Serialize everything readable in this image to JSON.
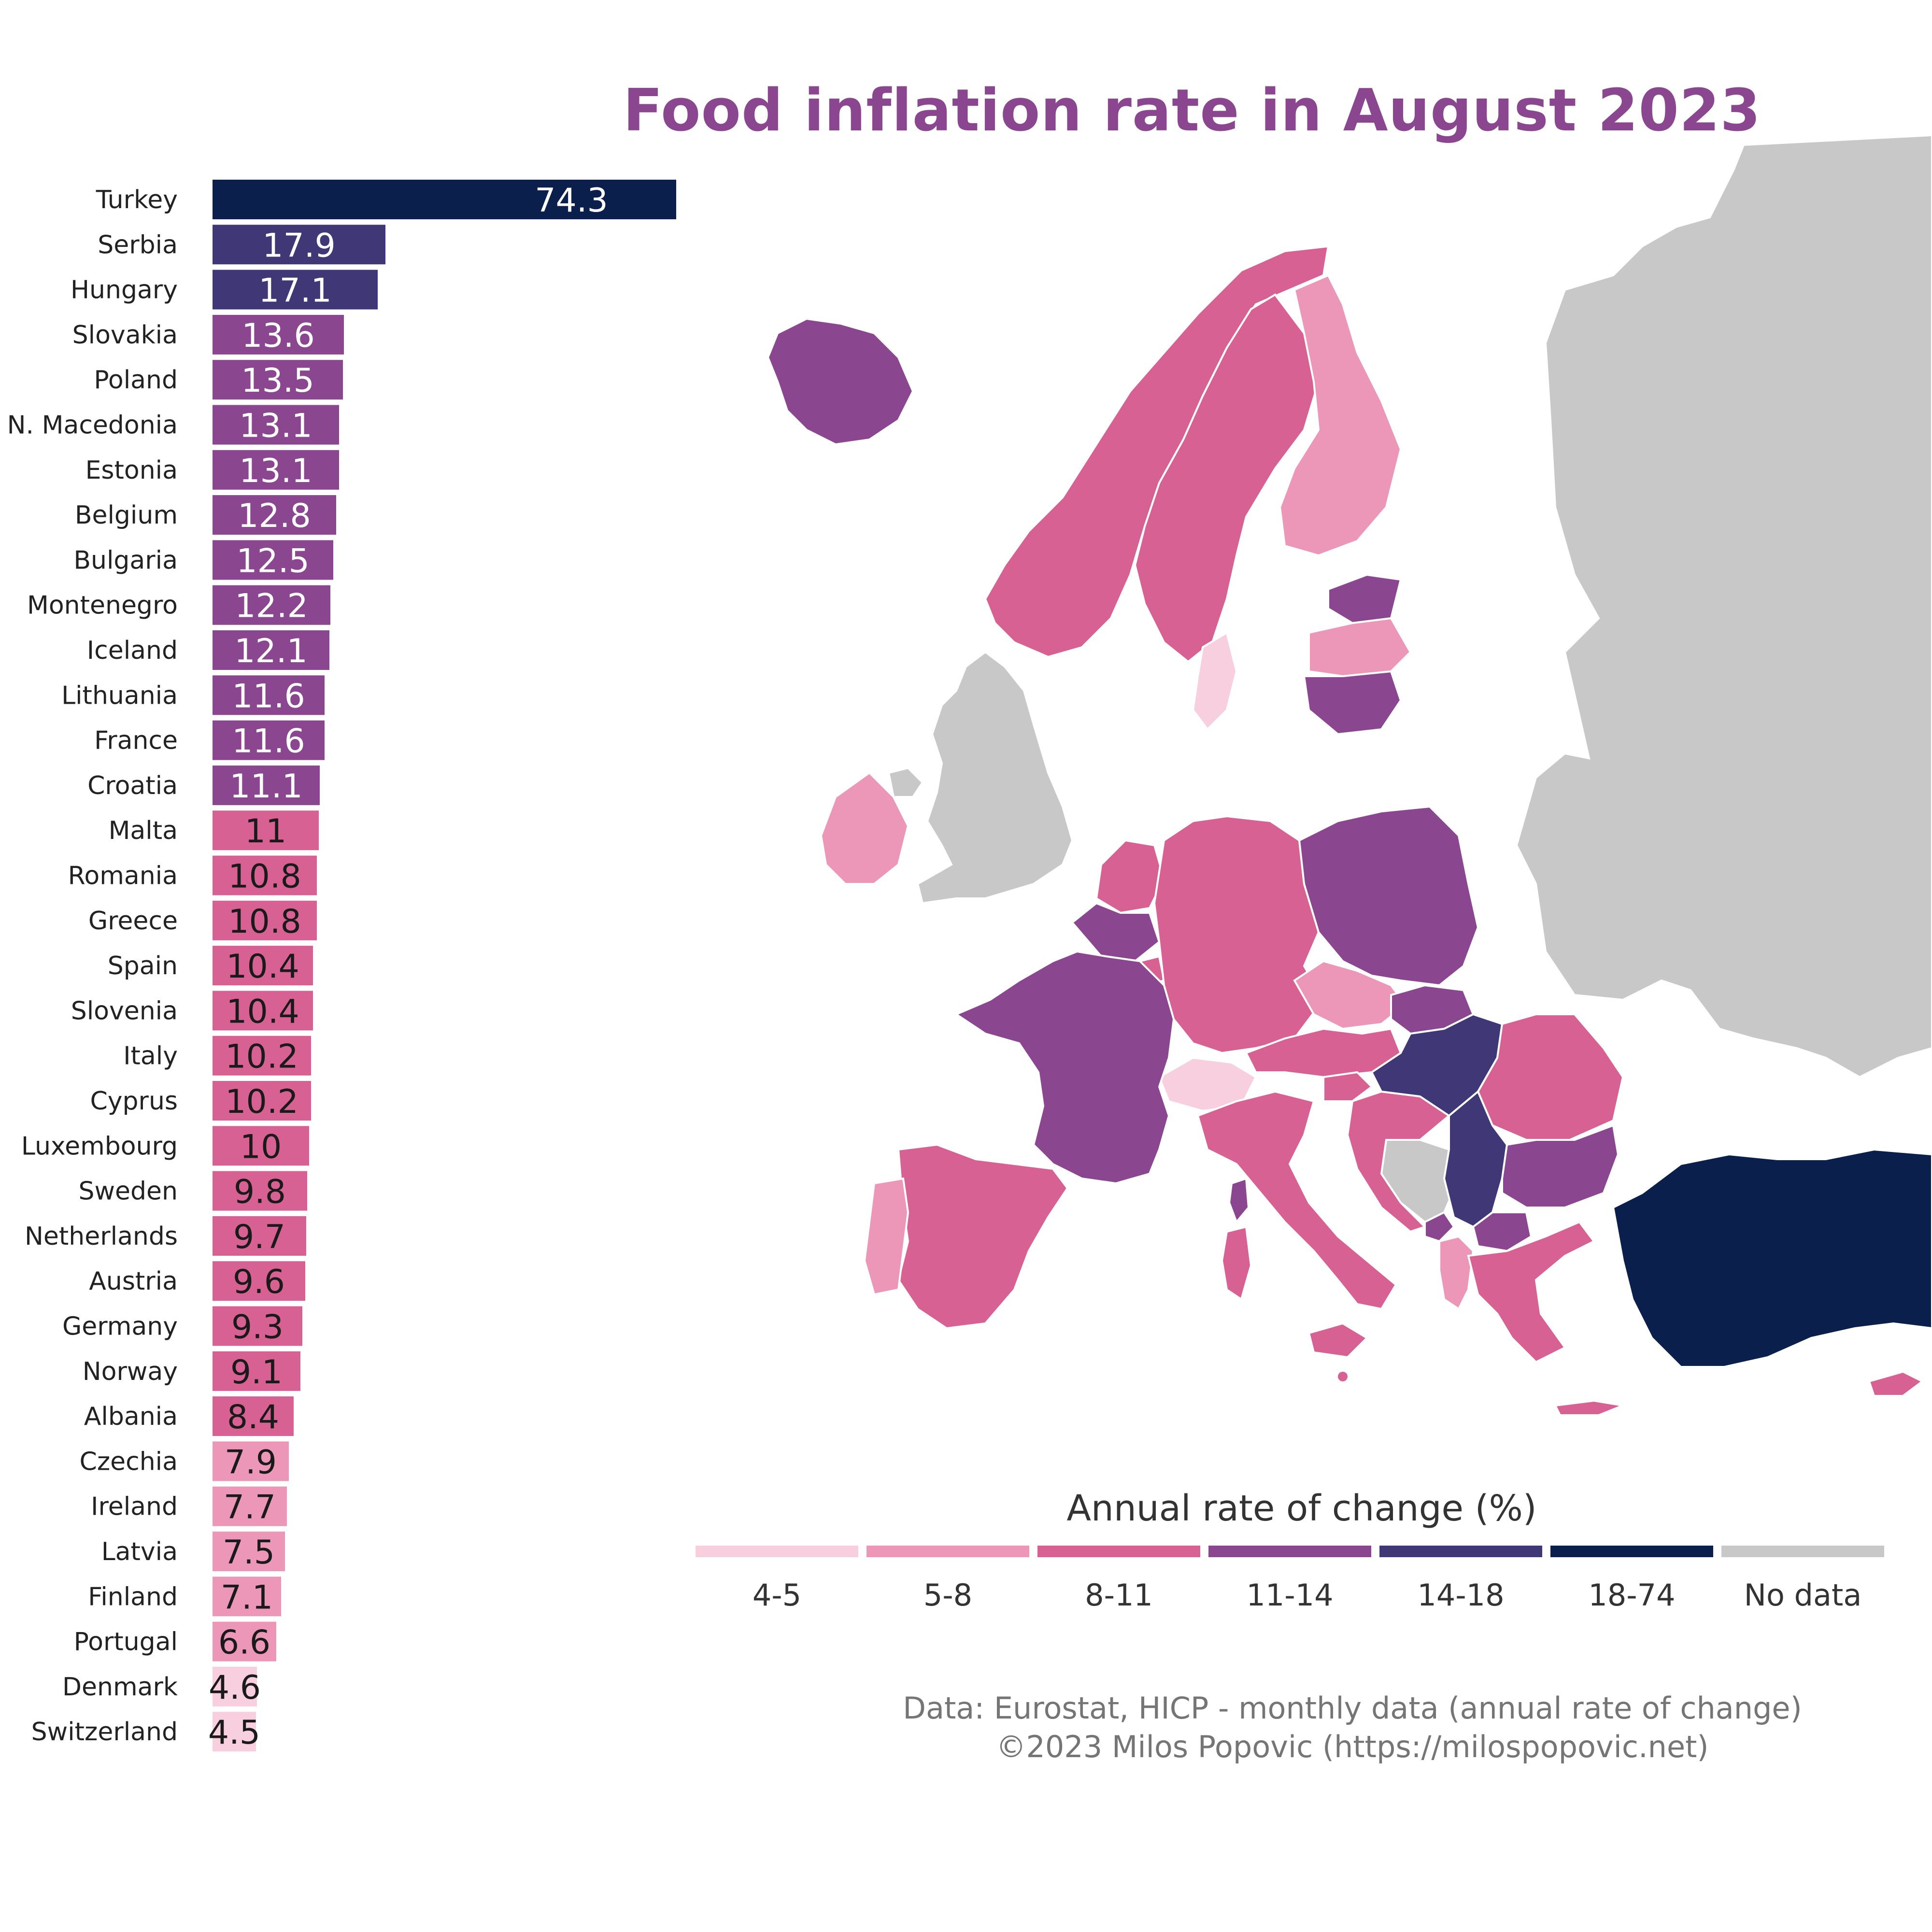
{
  "title": "Food inflation rate in August 2023",
  "chart_data": {
    "type": "bar",
    "orientation": "horizontal",
    "title": "Food inflation rate in August 2023",
    "categories": [
      "Turkey",
      "Serbia",
      "Hungary",
      "Slovakia",
      "Poland",
      "N. Macedonia",
      "Estonia",
      "Belgium",
      "Bulgaria",
      "Montenegro",
      "Iceland",
      "Lithuania",
      "France",
      "Croatia",
      "Malta",
      "Romania",
      "Greece",
      "Spain",
      "Slovenia",
      "Italy",
      "Cyprus",
      "Luxembourg",
      "Sweden",
      "Netherlands",
      "Austria",
      "Germany",
      "Norway",
      "Albania",
      "Czechia",
      "Ireland",
      "Latvia",
      "Finland",
      "Portugal",
      "Denmark",
      "Switzerland"
    ],
    "values": [
      74.3,
      17.9,
      17.1,
      13.6,
      13.5,
      13.1,
      13.1,
      12.8,
      12.5,
      12.2,
      12.1,
      11.6,
      11.6,
      11.1,
      11,
      10.8,
      10.8,
      10.4,
      10.4,
      10.2,
      10.2,
      10,
      9.8,
      9.7,
      9.6,
      9.3,
      9.1,
      8.4,
      7.9,
      7.7,
      7.5,
      7.1,
      6.6,
      4.6,
      4.5
    ],
    "value_labels": [
      "74.3",
      "17.9",
      "17.1",
      "13.6",
      "13.5",
      "13.1",
      "13.1",
      "12.8",
      "12.5",
      "12.2",
      "12.1",
      "11.6",
      "11.6",
      "11.1",
      "11",
      "10.8",
      "10.8",
      "10.4",
      "10.4",
      "10.2",
      "10.2",
      "10",
      "9.8",
      "9.7",
      "9.6",
      "9.3",
      "9.1",
      "8.4",
      "7.9",
      "7.7",
      "7.5",
      "7.1",
      "6.6",
      "4.6",
      "4.5"
    ],
    "legend_title": "Annual rate of change (%)",
    "legend": [
      {
        "label": "4-5",
        "color": "#f7cfdf"
      },
      {
        "label": "5-8",
        "color": "#ec96b8"
      },
      {
        "label": "8-11",
        "color": "#d86194"
      },
      {
        "label": "11-14",
        "color": "#8b4690"
      },
      {
        "label": "14-18",
        "color": "#3f3776"
      },
      {
        "label": "18-74",
        "color": "#0b1f4c"
      },
      {
        "label": "No data",
        "color": "#c8c8c8"
      }
    ]
  },
  "source": "Data: Eurostat, HICP - monthly data (annual rate of change)",
  "credit": "©2023 Milos Popovic (https://milospopovic.net)",
  "colors": {
    "title": "#8b4690",
    "no_data": "#c8c8c8",
    "border": "#ffffff"
  }
}
